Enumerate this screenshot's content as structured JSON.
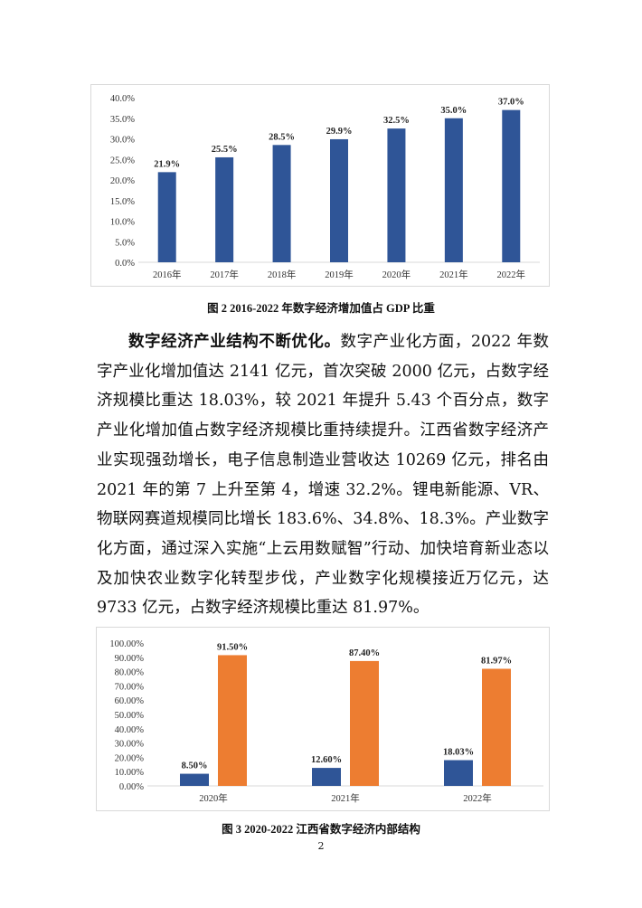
{
  "chart_data": [
    {
      "type": "bar",
      "categories": [
        "2016年",
        "2017年",
        "2018年",
        "2019年",
        "2020年",
        "2021年",
        "2022年"
      ],
      "values": [
        21.9,
        25.5,
        28.5,
        29.9,
        32.5,
        35.0,
        37.0
      ],
      "data_labels": [
        "21.9%",
        "25.5%",
        "28.5%",
        "29.9%",
        "32.5%",
        "35.0%",
        "37.0%"
      ],
      "yticks": [
        "0.0%",
        "5.0%",
        "10.0%",
        "15.0%",
        "20.0%",
        "25.0%",
        "30.0%",
        "35.0%",
        "40.0%"
      ],
      "ylim": [
        0,
        40
      ],
      "grid": false,
      "color": "#2f5597",
      "title": "图 2   2016-2022 年数字经济增加值占 GDP 比重"
    },
    {
      "type": "bar",
      "categories": [
        "2020年",
        "2021年",
        "2022年"
      ],
      "series": [
        {
          "values": [
            8.5,
            12.6,
            18.03
          ],
          "data_labels": [
            "8.50%",
            "12.60%",
            "18.03%"
          ],
          "color": "#2f5597"
        },
        {
          "values": [
            91.5,
            87.4,
            81.97
          ],
          "data_labels": [
            "91.50%",
            "87.40%",
            "81.97%"
          ],
          "color": "#ed7d31"
        }
      ],
      "yticks": [
        "0.00%",
        "10.00%",
        "20.00%",
        "30.00%",
        "40.00%",
        "50.00%",
        "60.00%",
        "70.00%",
        "80.00%",
        "90.00%",
        "100.00%"
      ],
      "ylim": [
        0,
        100
      ],
      "grid": false,
      "title": "图 3   2020-2022 江西省数字经济内部结构"
    }
  ],
  "body": {
    "lead": "数字经济产业结构不断优化。",
    "text": "数字产业化方面，2022 年数字产业化增加值达 2141 亿元，首次突破 2000 亿元，占数字经济规模比重达 18.03%，较 2021 年提升 5.43 个百分点，数字产业化增加值占数字经济规模比重持续提升。江西省数字经济产业实现强劲增长，电子信息制造业营收达 10269 亿元，排名由 2021 年的第 7 上升至第 4，增速 32.2%。锂电新能源、VR、物联网赛道规模同比增长 183.6%、34.8%、18.3%。产业数字化方面，通过深入实施“上云用数赋智”行动、加快培育新业态以及加快农业数字化转型步伐，产业数字化规模接近万亿元，达 9733 亿元，占数字经济规模比重达 81.97%。"
  },
  "page_number": "2"
}
